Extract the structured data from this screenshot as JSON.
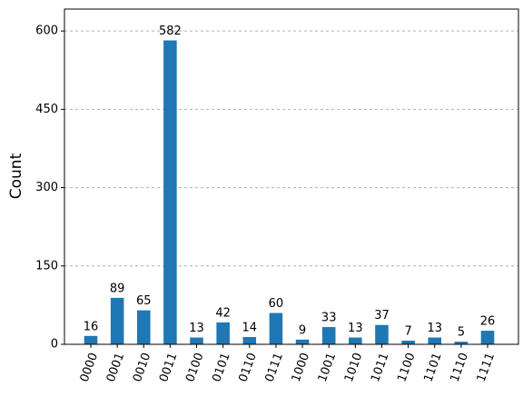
{
  "chart_data": {
    "type": "bar",
    "y_label": "Count",
    "categories": [
      "0000",
      "0001",
      "0010",
      "0011",
      "0100",
      "0101",
      "0110",
      "0111",
      "1000",
      "1001",
      "1010",
      "1011",
      "1100",
      "1101",
      "1110",
      "1111"
    ],
    "values": [
      16,
      89,
      65,
      582,
      13,
      42,
      14,
      60,
      9,
      33,
      13,
      37,
      7,
      13,
      5,
      26
    ],
    "color": "#1f77b4",
    "ylim": [
      0,
      642
    ],
    "yticks": [
      0,
      150,
      300,
      450,
      600
    ],
    "grid": true
  }
}
